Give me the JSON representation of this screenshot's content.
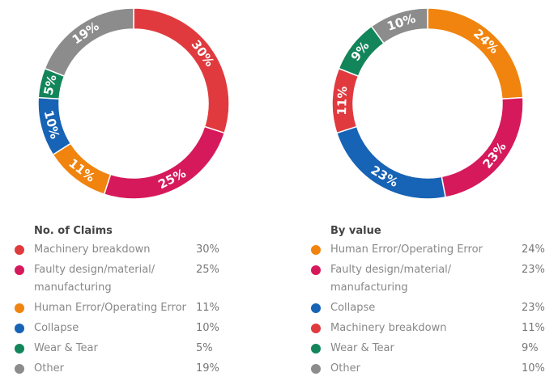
{
  "chart_data": [
    {
      "type": "pie",
      "title": "No. of Claims",
      "categories": [
        "Machinery breakdown",
        "Faulty design/material/ manufacturing",
        "Human Error/Operating Error",
        "Collapse",
        "Wear & Tear",
        "Other"
      ],
      "values": [
        30,
        25,
        11,
        10,
        5,
        19
      ],
      "value_labels": [
        "30%",
        "25%",
        "11%",
        "10%",
        "5%",
        "19%"
      ],
      "colors": [
        "#e03a3e",
        "#d6195b",
        "#f0840f",
        "#1763b5",
        "#13855a",
        "#8c8c8c"
      ]
    },
    {
      "type": "pie",
      "title": "By value",
      "categories": [
        "Human Error/Operating Error",
        "Faulty design/material/ manufacturing",
        "Collapse",
        "Machinery breakdown",
        "Wear & Tear",
        "Other"
      ],
      "values": [
        24,
        23,
        23,
        11,
        9,
        10
      ],
      "value_labels": [
        "24%",
        "23%",
        "23%",
        "11%",
        "9%",
        "10%"
      ],
      "colors": [
        "#f0840f",
        "#d6195b",
        "#1763b5",
        "#e03a3e",
        "#13855a",
        "#8c8c8c"
      ]
    }
  ]
}
